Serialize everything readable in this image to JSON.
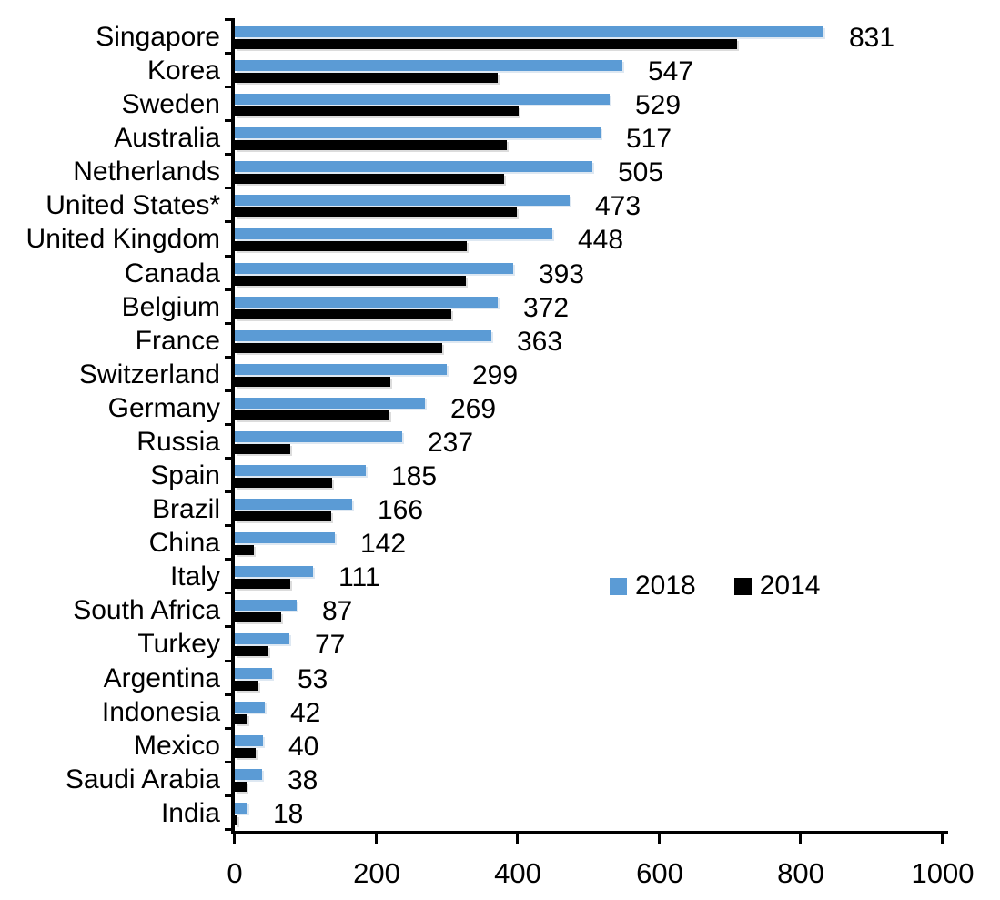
{
  "chart_data": {
    "type": "bar",
    "orientation": "horizontal",
    "title": "",
    "xlabel": "",
    "ylabel": "",
    "categories": [
      "Singapore",
      "Korea",
      "Sweden",
      "Australia",
      "Netherlands",
      "United States*",
      "United Kingdom",
      "Canada",
      "Belgium",
      "France",
      "Switzerland",
      "Germany",
      "Russia",
      "Spain",
      "Brazil",
      "China",
      "Italy",
      "South Africa",
      "Turkey",
      "Argentina",
      "Indonesia",
      "Mexico",
      "Saudi Arabia",
      "India"
    ],
    "series": [
      {
        "name": "2018",
        "color": "#5B9BD5",
        "values": [
          831,
          547,
          529,
          517,
          505,
          473,
          448,
          393,
          372,
          363,
          299,
          269,
          237,
          185,
          166,
          142,
          111,
          87,
          77,
          53,
          42,
          40,
          38,
          18
        ]
      },
      {
        "name": "2014",
        "color": "#000000",
        "values": [
          710,
          371,
          401,
          384,
          381,
          399,
          328,
          326,
          306,
          293,
          220,
          218,
          79,
          138,
          136,
          27,
          78,
          65,
          47,
          33,
          18,
          29,
          17,
          4
        ]
      }
    ],
    "value_labels_series": "2018",
    "value_labels": [
      "831",
      "547",
      "529",
      "517",
      "505",
      "473",
      "448",
      "393",
      "372",
      "363",
      "299",
      "269",
      "237",
      "185",
      "166",
      "142",
      "111",
      "87",
      "77",
      "53",
      "42",
      "40",
      "38",
      "18"
    ],
    "xlim": [
      0,
      1000
    ],
    "xticks": [
      0,
      200,
      400,
      600,
      800,
      1000
    ],
    "grid": false,
    "legend": {
      "position": "middle-right",
      "entries": [
        {
          "label": "2018",
          "color": "#5B9BD5"
        },
        {
          "label": "2014",
          "color": "#000000"
        }
      ]
    },
    "axis_color": "#000000",
    "text_color": "#000000",
    "background": "#FFFFFF"
  }
}
